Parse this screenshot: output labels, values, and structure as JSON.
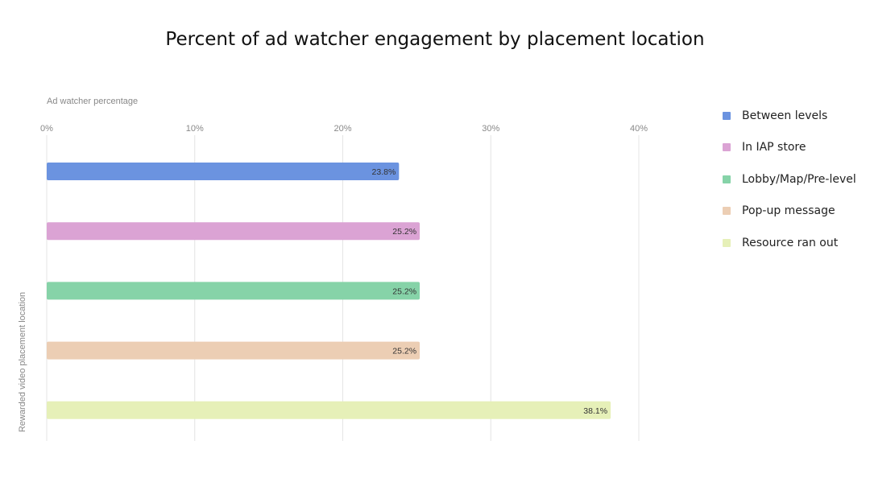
{
  "chart_data": {
    "type": "bar",
    "orientation": "horizontal",
    "title": "Percent of ad watcher engagement by placement location",
    "xlabel": "Ad watcher percentage",
    "ylabel": "Rewarded video placement location",
    "xlim": [
      0,
      40
    ],
    "x_ticks": [
      "0%",
      "10%",
      "20%",
      "30%",
      "40%"
    ],
    "grid": true,
    "legend_position": "right",
    "series": [
      {
        "name": "Between levels",
        "value": 23.8,
        "label": "23.8%",
        "color": "#6b93e0"
      },
      {
        "name": "In IAP store",
        "value": 25.2,
        "label": "25.2%",
        "color": "#dba3d4"
      },
      {
        "name": "Lobby/Map/Pre-level",
        "value": 25.2,
        "label": "25.2%",
        "color": "#86d3a8"
      },
      {
        "name": "Pop-up message",
        "value": 25.2,
        "label": "25.2%",
        "color": "#ecceb4"
      },
      {
        "name": "Resource ran out",
        "value": 38.1,
        "label": "38.1%",
        "color": "#e6f0b8"
      }
    ]
  }
}
